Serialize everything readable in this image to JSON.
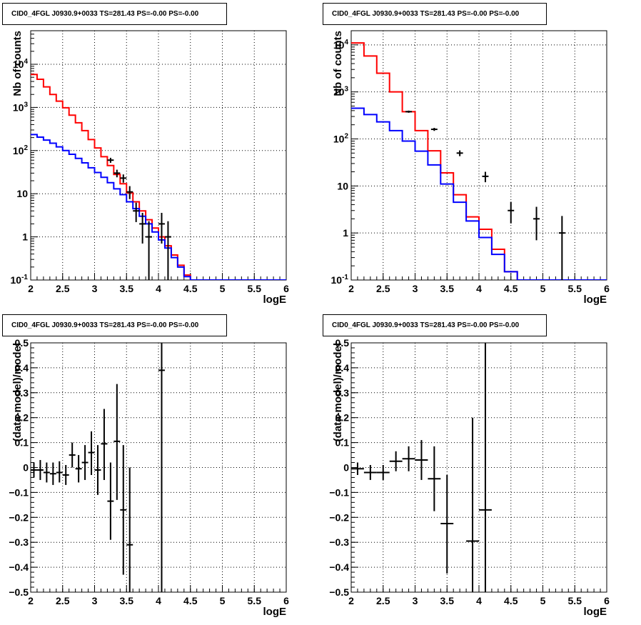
{
  "chart_data": [
    {
      "type": "histogram",
      "title": "CID0_4FGL J0930.9+0033 TS=281.43 PS=-0.00 PS=-0.00",
      "xlabel": "logE",
      "ylabel": "Nb of counts",
      "xlim": [
        2,
        6
      ],
      "ylim": [
        0.1,
        60000
      ],
      "yscale": "log",
      "grid": true,
      "xticks": [
        "2",
        "2.5",
        "3",
        "3.5",
        "4",
        "4.5",
        "5",
        "5.5",
        "6"
      ],
      "yticks": [
        "10^-1",
        "1",
        "10",
        "10^2",
        "10^3",
        "10^4"
      ],
      "bin_edges": [
        2.0,
        2.1,
        2.2,
        2.3,
        2.4,
        2.5,
        2.6,
        2.7,
        2.8,
        2.9,
        3.0,
        3.1,
        3.2,
        3.3,
        3.4,
        3.5,
        3.6,
        3.7,
        3.8,
        3.9,
        4.0,
        4.1,
        4.2,
        4.3,
        4.4,
        4.5,
        4.6,
        4.7,
        4.8,
        4.9,
        5.0,
        5.1,
        5.2,
        5.3,
        5.4,
        5.5,
        5.6,
        5.7,
        5.8,
        5.9,
        6.0
      ],
      "series": [
        {
          "name": "total model",
          "color": "#ff0000",
          "kind": "step",
          "values": [
            5800,
            4500,
            3000,
            2000,
            1400,
            980,
            660,
            440,
            290,
            180,
            115,
            72,
            45,
            28,
            17,
            10.5,
            6.5,
            4.0,
            2.5,
            1.6,
            1.0,
            0.62,
            0.38,
            0.22,
            0.13,
            0.1,
            0.1,
            0.1,
            0.1,
            0.1,
            0.1,
            0.1,
            0.1,
            0.1,
            0.1,
            0.1,
            0.1,
            0.1,
            0.1,
            0.1
          ]
        },
        {
          "name": "background",
          "color": "#0000ff",
          "kind": "step",
          "values": [
            235,
            205,
            175,
            148,
            122,
            100,
            82,
            66,
            52,
            40,
            31,
            24,
            18,
            13,
            9.5,
            6.5,
            4.5,
            3.0,
            2.0,
            1.3,
            0.85,
            0.55,
            0.33,
            0.2,
            0.12,
            0.1,
            0.1,
            0.1,
            0.1,
            0.1,
            0.1,
            0.1,
            0.1,
            0.1,
            0.1,
            0.1,
            0.1,
            0.1,
            0.1,
            0.1
          ]
        },
        {
          "name": "data",
          "color": "#000000",
          "kind": "points",
          "points": [
            {
              "x": 3.25,
              "y": 60,
              "ylo": 52,
              "yhi": 68
            },
            {
              "x": 3.35,
              "y": 30,
              "ylo": 24,
              "yhi": 36
            },
            {
              "x": 3.45,
              "y": 23,
              "ylo": 18,
              "yhi": 28
            },
            {
              "x": 3.55,
              "y": 11,
              "ylo": 7.5,
              "yhi": 15
            },
            {
              "x": 3.65,
              "y": 4,
              "ylo": 2.2,
              "yhi": 6.2
            },
            {
              "x": 3.75,
              "y": 2,
              "ylo": 0.7,
              "yhi": 3.6
            },
            {
              "x": 3.85,
              "y": 1,
              "ylo": 0.1,
              "yhi": 2.3
            },
            {
              "x": 4.05,
              "y": 2,
              "ylo": 0.7,
              "yhi": 3.6
            },
            {
              "x": 4.15,
              "y": 1,
              "ylo": 0.1,
              "yhi": 2.3
            }
          ]
        }
      ]
    },
    {
      "type": "histogram",
      "title": "CID0_4FGL J0930.9+0033 TS=281.43 PS=-0.00 PS=-0.00",
      "xlabel": "logE",
      "ylabel": "Nb of counts",
      "xlim": [
        2,
        6
      ],
      "ylim": [
        0.1,
        20000
      ],
      "yscale": "log",
      "grid": true,
      "xticks": [
        "2",
        "2.5",
        "3",
        "3.5",
        "4",
        "4.5",
        "5",
        "5.5",
        "6"
      ],
      "yticks": [
        "10^-1",
        "1",
        "10",
        "10^2",
        "10^3",
        "10^4"
      ],
      "bin_edges": [
        2.0,
        2.2,
        2.4,
        2.6,
        2.8,
        3.0,
        3.2,
        3.4,
        3.6,
        3.8,
        4.0,
        4.2,
        4.4,
        4.6,
        4.8,
        5.0,
        5.2,
        5.4,
        5.6,
        5.8,
        6.0
      ],
      "series": [
        {
          "name": "total model",
          "color": "#ff0000",
          "kind": "step",
          "values": [
            11000,
            5800,
            2500,
            1000,
            380,
            150,
            56,
            19,
            6.5,
            2.2,
            1.2,
            0.45,
            0.15,
            0.1,
            0.1,
            0.1,
            0.1,
            0.1,
            0.1,
            0.1
          ]
        },
        {
          "name": "background",
          "color": "#0000ff",
          "kind": "step",
          "values": [
            450,
            330,
            230,
            150,
            90,
            55,
            28,
            11,
            4.5,
            1.8,
            0.8,
            0.35,
            0.15,
            0.1,
            0.1,
            0.1,
            0.1,
            0.1,
            0.1,
            0.1
          ]
        },
        {
          "name": "data",
          "color": "#000000",
          "kind": "points",
          "points": [
            {
              "x": 2.9,
              "y": 380,
              "ylo": 360,
              "yhi": 400
            },
            {
              "x": 3.3,
              "y": 160,
              "ylo": 148,
              "yhi": 172
            },
            {
              "x": 3.7,
              "y": 50,
              "ylo": 43,
              "yhi": 57
            },
            {
              "x": 4.1,
              "y": 16,
              "ylo": 12,
              "yhi": 20
            },
            {
              "x": 4.5,
              "y": 3,
              "ylo": 1.6,
              "yhi": 4.6
            },
            {
              "x": 4.9,
              "y": 2,
              "ylo": 0.7,
              "yhi": 3.6
            },
            {
              "x": 5.3,
              "y": 1,
              "ylo": 0.1,
              "yhi": 2.3
            }
          ]
        }
      ]
    },
    {
      "type": "scatter",
      "title": "CID0_4FGL J0930.9+0033 TS=281.43 PS=-0.00 PS=-0.00",
      "xlabel": "logE",
      "ylabel": "(data-model)/model",
      "xlim": [
        2,
        6
      ],
      "ylim": [
        -0.5,
        0.5
      ],
      "grid": true,
      "xticks": [
        "2",
        "2.5",
        "3",
        "3.5",
        "4",
        "4.5",
        "5",
        "5.5",
        "6"
      ],
      "yticks": [
        "-0.5",
        "-0.4",
        "-0.3",
        "-0.2",
        "-0.1",
        "0",
        "0.1",
        "0.2",
        "0.3",
        "0.4",
        "0.5"
      ],
      "series": [
        {
          "name": "residuals",
          "color": "#000000",
          "kind": "points",
          "xerr": 0.05,
          "points": [
            {
              "x": 2.05,
              "y": -0.01,
              "ylo": -0.04,
              "yhi": 0.02
            },
            {
              "x": 2.15,
              "y": -0.01,
              "ylo": -0.05,
              "yhi": 0.03
            },
            {
              "x": 2.25,
              "y": -0.02,
              "ylo": -0.06,
              "yhi": 0.02
            },
            {
              "x": 2.35,
              "y": -0.025,
              "ylo": -0.07,
              "yhi": 0.02
            },
            {
              "x": 2.45,
              "y": -0.02,
              "ylo": -0.06,
              "yhi": 0.025
            },
            {
              "x": 2.55,
              "y": -0.03,
              "ylo": -0.07,
              "yhi": 0.01
            },
            {
              "x": 2.65,
              "y": 0.05,
              "ylo": 0.0,
              "yhi": 0.1
            },
            {
              "x": 2.75,
              "y": -0.005,
              "ylo": -0.06,
              "yhi": 0.05
            },
            {
              "x": 2.85,
              "y": 0.02,
              "ylo": -0.05,
              "yhi": 0.09
            },
            {
              "x": 2.95,
              "y": 0.06,
              "ylo": -0.03,
              "yhi": 0.145
            },
            {
              "x": 3.05,
              "y": -0.01,
              "ylo": -0.11,
              "yhi": 0.09
            },
            {
              "x": 3.15,
              "y": 0.095,
              "ylo": -0.05,
              "yhi": 0.235
            },
            {
              "x": 3.25,
              "y": -0.135,
              "ylo": -0.29,
              "yhi": 0.02
            },
            {
              "x": 3.35,
              "y": 0.105,
              "ylo": -0.13,
              "yhi": 0.335
            },
            {
              "x": 3.45,
              "y": -0.17,
              "ylo": -0.43,
              "yhi": 0.09
            },
            {
              "x": 3.55,
              "y": -0.31,
              "ylo": -0.5,
              "yhi": 0.0
            },
            {
              "x": 4.05,
              "y": 0.39,
              "ylo": -0.5,
              "yhi": 0.5
            }
          ]
        }
      ]
    },
    {
      "type": "scatter",
      "title": "CID0_4FGL J0930.9+0033 TS=281.43 PS=-0.00 PS=-0.00",
      "xlabel": "logE",
      "ylabel": "(data-model)/model",
      "xlim": [
        2,
        6
      ],
      "ylim": [
        -0.5,
        0.5
      ],
      "grid": true,
      "xticks": [
        "2",
        "2.5",
        "3",
        "3.5",
        "4",
        "4.5",
        "5",
        "5.5",
        "6"
      ],
      "yticks": [
        "-0.5",
        "-0.4",
        "-0.3",
        "-0.2",
        "-0.1",
        "0",
        "0.1",
        "0.2",
        "0.3",
        "0.4",
        "0.5"
      ],
      "series": [
        {
          "name": "residuals",
          "color": "#000000",
          "kind": "points",
          "xerr": 0.1,
          "points": [
            {
              "x": 2.1,
              "y": -0.005,
              "ylo": -0.03,
              "yhi": 0.02
            },
            {
              "x": 2.3,
              "y": -0.02,
              "ylo": -0.05,
              "yhi": 0.01
            },
            {
              "x": 2.5,
              "y": -0.02,
              "ylo": -0.05,
              "yhi": 0.01
            },
            {
              "x": 2.7,
              "y": 0.025,
              "ylo": -0.015,
              "yhi": 0.065
            },
            {
              "x": 2.9,
              "y": 0.035,
              "ylo": -0.015,
              "yhi": 0.085
            },
            {
              "x": 3.1,
              "y": 0.03,
              "ylo": -0.05,
              "yhi": 0.11
            },
            {
              "x": 3.3,
              "y": -0.045,
              "ylo": -0.175,
              "yhi": 0.085
            },
            {
              "x": 3.5,
              "y": -0.225,
              "ylo": -0.425,
              "yhi": -0.03
            },
            {
              "x": 3.9,
              "y": -0.295,
              "ylo": -0.5,
              "yhi": 0.2
            },
            {
              "x": 4.1,
              "y": -0.17,
              "ylo": -0.5,
              "yhi": 0.5
            }
          ]
        }
      ]
    }
  ]
}
